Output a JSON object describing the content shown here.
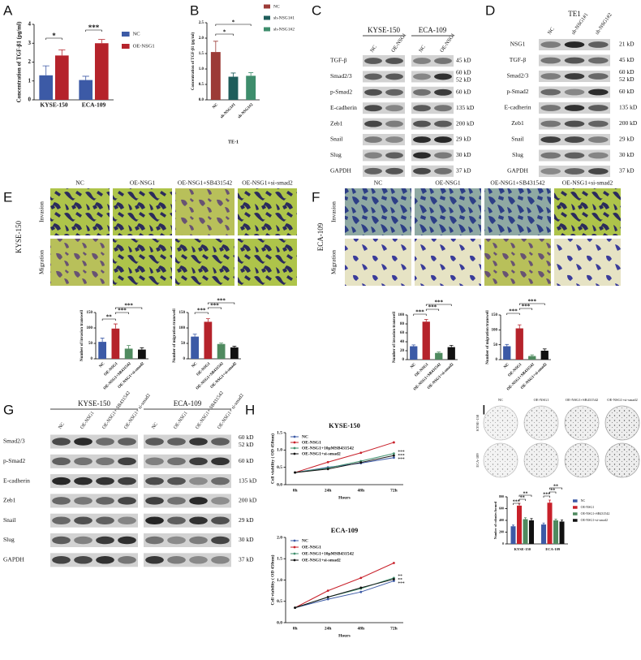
{
  "panel_labels": [
    "A",
    "B",
    "C",
    "D",
    "E",
    "F",
    "G",
    "H",
    "I"
  ],
  "chart_data": [
    {
      "type": "bar",
      "categories": [
        "KYSE-150",
        "ECA-109"
      ],
      "series": [
        {
          "name": "NC",
          "color": "#3c5aa6",
          "values": [
            1.3,
            1.05
          ],
          "errors": [
            0.5,
            0.2
          ]
        },
        {
          "name": "OE-NSG1",
          "color": "#b5232b",
          "values": [
            2.35,
            3.0
          ],
          "errors": [
            0.3,
            0.2
          ]
        }
      ],
      "y_label": "Concentration of TGF-β1 (pg/ml)",
      "ylim": [
        0,
        4
      ],
      "yticks": [
        0,
        1,
        2,
        3,
        4
      ],
      "annotations": [
        "*",
        "***"
      ]
    },
    {
      "type": "bar",
      "categories": [
        "NC",
        "sh-NSG1#1",
        "sh-NSG1#2"
      ],
      "values": [
        1.55,
        0.75,
        0.78
      ],
      "errors": [
        0.35,
        0.12,
        0.1
      ],
      "colors": [
        "#9c3b37",
        "#1e5d5b",
        "#3e8d6c"
      ],
      "x_label": "TE-1",
      "y_label": "Concentration of TGF-β1 (pg/ml)",
      "ylim": [
        0,
        2.5
      ],
      "yticks": [
        {
          "value": 0,
          "label": "0.0"
        },
        {
          "value": 0.5,
          "label": "0.5"
        },
        {
          "value": 1,
          "label": "1.0"
        },
        {
          "value": 1.5,
          "label": "1.5"
        },
        {
          "value": 2,
          "label": "2.0"
        },
        {
          "value": 2.5,
          "label": "2.5"
        }
      ],
      "annotations": [
        "*",
        "*"
      ]
    },
    {
      "type": "bar",
      "categories": [
        "NC",
        "OE-NSG1",
        "OE-NSG1+SB431542",
        "OE-NSG1+si-smad2"
      ],
      "values": [
        55,
        98,
        33,
        30
      ],
      "errors": [
        12,
        15,
        10,
        6
      ],
      "colors": [
        "#3c5aa6",
        "#b5232b",
        "#4f8a5f",
        "#111111"
      ],
      "y_label": "Number of invasion transwell",
      "ylim": [
        0,
        150
      ],
      "yticks": [
        0,
        50,
        100,
        150
      ],
      "annotations": [
        "**",
        "***",
        "***"
      ]
    },
    {
      "type": "bar",
      "categories": [
        "NC",
        "OE-NSG1",
        "OE-NSG1+SB431542",
        "OE-NSG1+si-smad2"
      ],
      "values": [
        72,
        120,
        48,
        37
      ],
      "errors": [
        8,
        10,
        3,
        4
      ],
      "colors": [
        "#3c5aa6",
        "#b5232b",
        "#4f8a5f",
        "#111111"
      ],
      "y_label": "Number of migration transwell",
      "ylim": [
        0,
        150
      ],
      "yticks": [
        0,
        50,
        100,
        150
      ],
      "annotations": [
        "***",
        "***",
        "***"
      ]
    },
    {
      "type": "bar",
      "categories": [
        "NC",
        "OE-NSG1",
        "OE-NSG1+SB431542",
        "OE-NSG1+si-smad2"
      ],
      "values": [
        30,
        85,
        15,
        28
      ],
      "errors": [
        3,
        5,
        2,
        4
      ],
      "colors": [
        "#3c5aa6",
        "#b5232b",
        "#4f8a5f",
        "#111111"
      ],
      "y_label": "Number of invasion transwell",
      "ylim": [
        0,
        100
      ],
      "yticks": [
        0,
        20,
        40,
        60,
        80,
        100
      ],
      "annotations": [
        "***",
        "***",
        "***"
      ]
    },
    {
      "type": "bar",
      "categories": [
        "NC",
        "OE-NSG1",
        "OE-NSG1+SB431542",
        "OE-NSG1+si-smad2"
      ],
      "values": [
        45,
        105,
        12,
        30
      ],
      "errors": [
        6,
        12,
        4,
        6
      ],
      "colors": [
        "#3c5aa6",
        "#b5232b",
        "#4f8a5f",
        "#111111"
      ],
      "y_label": "Number of migration transwell",
      "ylim": [
        0,
        150
      ],
      "yticks": [
        0,
        50,
        100,
        150
      ],
      "annotations": [
        "***",
        "***",
        "***"
      ]
    },
    {
      "type": "line",
      "title": "KYSE-150",
      "categories": [
        "0h",
        "24h",
        "48h",
        "72h"
      ],
      "series": [
        {
          "name": "NC",
          "color": "#3c5aa6",
          "values": [
            0.35,
            0.5,
            0.62,
            0.78
          ]
        },
        {
          "name": "OE-NSG1",
          "color": "#c8202a",
          "values": [
            0.35,
            0.65,
            0.92,
            1.22
          ]
        },
        {
          "name": "OE-NSG1+10μMSB431542",
          "color": "#3f8f6c",
          "values": [
            0.35,
            0.48,
            0.68,
            0.9
          ]
        },
        {
          "name": "OE-NSG1+si-smad2",
          "color": "#111111",
          "values": [
            0.35,
            0.45,
            0.64,
            0.84
          ]
        }
      ],
      "x_label": "Hours",
      "y_label": "Cell viability ( OD 450nm)",
      "ylim": [
        0,
        1.5
      ],
      "yticks": [
        {
          "value": 0,
          "label": "0.0"
        },
        {
          "value": 0.5,
          "label": "0.5"
        },
        {
          "value": 1,
          "label": "1.0"
        },
        {
          "value": 1.5,
          "label": "1.5"
        }
      ],
      "annotations": [
        "***",
        "***",
        "***"
      ]
    },
    {
      "type": "line",
      "title": "ECA-109",
      "categories": [
        "0h",
        "24h",
        "48h",
        "72h"
      ],
      "series": [
        {
          "name": "NC",
          "color": "#3c5aa6",
          "values": [
            0.35,
            0.55,
            0.72,
            0.98
          ]
        },
        {
          "name": "OE-NSG1",
          "color": "#c8202a",
          "values": [
            0.35,
            0.75,
            1.05,
            1.4
          ]
        },
        {
          "name": "OE-NSG1+10μMSB431542",
          "color": "#3f8f6c",
          "values": [
            0.35,
            0.6,
            0.8,
            1.05
          ]
        },
        {
          "name": "OE-NSG1+si-smad2",
          "color": "#111111",
          "values": [
            0.35,
            0.6,
            0.82,
            1.02
          ]
        }
      ],
      "x_label": "Hours",
      "y_label": "Cell viability ( OD 450nm)",
      "ylim": [
        0,
        2
      ],
      "yticks": [
        {
          "value": 0,
          "label": "0.0"
        },
        {
          "value": 0.5,
          "label": "0.5"
        },
        {
          "value": 1,
          "label": "1.0"
        },
        {
          "value": 1.5,
          "label": "1.5"
        },
        {
          "value": 2,
          "label": "2.0"
        }
      ],
      "annotations": [
        "**",
        "**",
        "***"
      ]
    },
    {
      "type": "bar",
      "categories": [
        "KYSE-150",
        "ECA-109"
      ],
      "series": [
        {
          "name": "NC",
          "color": "#3c5aa6",
          "values": [
            300,
            330
          ],
          "errors": [
            20,
            25
          ]
        },
        {
          "name": "OE-NSG1",
          "color": "#c8202a",
          "values": [
            650,
            700
          ],
          "errors": [
            40,
            45
          ]
        },
        {
          "name": "OE-NSG1+SB431542",
          "color": "#4f8a5f",
          "values": [
            420,
            400
          ],
          "errors": [
            25,
            20
          ]
        },
        {
          "name": "OE-NSG1+si-smad2",
          "color": "#111111",
          "values": [
            400,
            380
          ],
          "errors": [
            30,
            25
          ]
        }
      ],
      "y_label": "Number of colonies formed",
      "ylim": [
        0,
        800
      ],
      "yticks": [
        0,
        200,
        400,
        600,
        800
      ],
      "annotations": [
        "***",
        "**",
        "**",
        "***",
        "**",
        "**"
      ]
    }
  ],
  "blots": [
    {
      "groups": [
        "KYSE-150",
        "ECA-109"
      ],
      "lanes": [
        "NC",
        "OE-NSG1"
      ],
      "rows": [
        {
          "protein": "TGF-β",
          "sizes": [
            "45 kD"
          ]
        },
        {
          "protein": "Smad2/3",
          "sizes": [
            "60 kD",
            "52 kD"
          ]
        },
        {
          "protein": "p-Smad2",
          "sizes": [
            "60 kD"
          ]
        },
        {
          "protein": "E-cadherin",
          "sizes": [
            "135 kD"
          ]
        },
        {
          "protein": "Zeb1",
          "sizes": [
            "200 kD"
          ]
        },
        {
          "protein": "Snail",
          "sizes": [
            "29 kD"
          ]
        },
        {
          "protein": "Slug",
          "sizes": [
            "30 kD"
          ]
        },
        {
          "protein": "GAPDH",
          "sizes": [
            "37 kD"
          ]
        }
      ]
    },
    {
      "groups": [
        "TE1"
      ],
      "lanes": [
        "NC",
        "sh-NSG1#1",
        "sh-NSG1#2"
      ],
      "rows": [
        {
          "protein": "NSG1",
          "sizes": [
            "21 kD"
          ]
        },
        {
          "protein": "TGF-β",
          "sizes": [
            "45 kD"
          ]
        },
        {
          "protein": "Smad2/3",
          "sizes": [
            "60 kD",
            "52 kD"
          ]
        },
        {
          "protein": "p-Smad2",
          "sizes": [
            "60 kD"
          ]
        },
        {
          "protein": "E-cadherin",
          "sizes": [
            "135 kD"
          ]
        },
        {
          "protein": "Zeb1",
          "sizes": [
            "200 kD"
          ]
        },
        {
          "protein": "Snail",
          "sizes": [
            "29 kD"
          ]
        },
        {
          "protein": "Slug",
          "sizes": [
            "30 kD"
          ]
        },
        {
          "protein": "GAPDH",
          "sizes": [
            "37 kD"
          ]
        }
      ]
    },
    {
      "groups": [
        "KYSE-150",
        "ECA-109"
      ],
      "lanes": [
        "NC",
        "OE-NSG1",
        "OE-NSG1+ SB431542",
        "OE-NSG1+ si-smad2"
      ],
      "rows": [
        {
          "protein": "Smad2/3",
          "sizes": [
            "60 kD",
            "52 kD"
          ]
        },
        {
          "protein": "p-Smad2",
          "sizes": [
            "60 kD"
          ]
        },
        {
          "protein": "E-cadherin",
          "sizes": [
            "135 kD"
          ]
        },
        {
          "protein": "Zeb1",
          "sizes": [
            "200 kD"
          ]
        },
        {
          "protein": "Snail",
          "sizes": [
            "29 kD"
          ]
        },
        {
          "protein": "Slug",
          "sizes": [
            "30 kD"
          ]
        },
        {
          "protein": "GAPDH",
          "sizes": [
            "37 kD"
          ]
        }
      ]
    }
  ],
  "images": [
    {
      "cell_line": "KYSE-150",
      "columns": [
        "NC",
        "OE-NSG1",
        "OE-NSG1+SB431542",
        "OE-NSG1+si-smad2"
      ],
      "rows": [
        "Invasion",
        "Migration"
      ]
    },
    {
      "cell_line": "ECA-109",
      "columns": [
        "NC",
        "OE-NSG1",
        "OE-NSG1+SB431542",
        "OE-NSG1+si-smad2"
      ],
      "rows": [
        "Invasion",
        "Migration"
      ]
    },
    {
      "columns": [
        "NC",
        "OE-NSG1",
        "OE-NSG1+SB431542",
        "OE-NSG1+si-smad2"
      ],
      "rows": [
        "KYSE-150",
        "ECA-109"
      ]
    }
  ]
}
